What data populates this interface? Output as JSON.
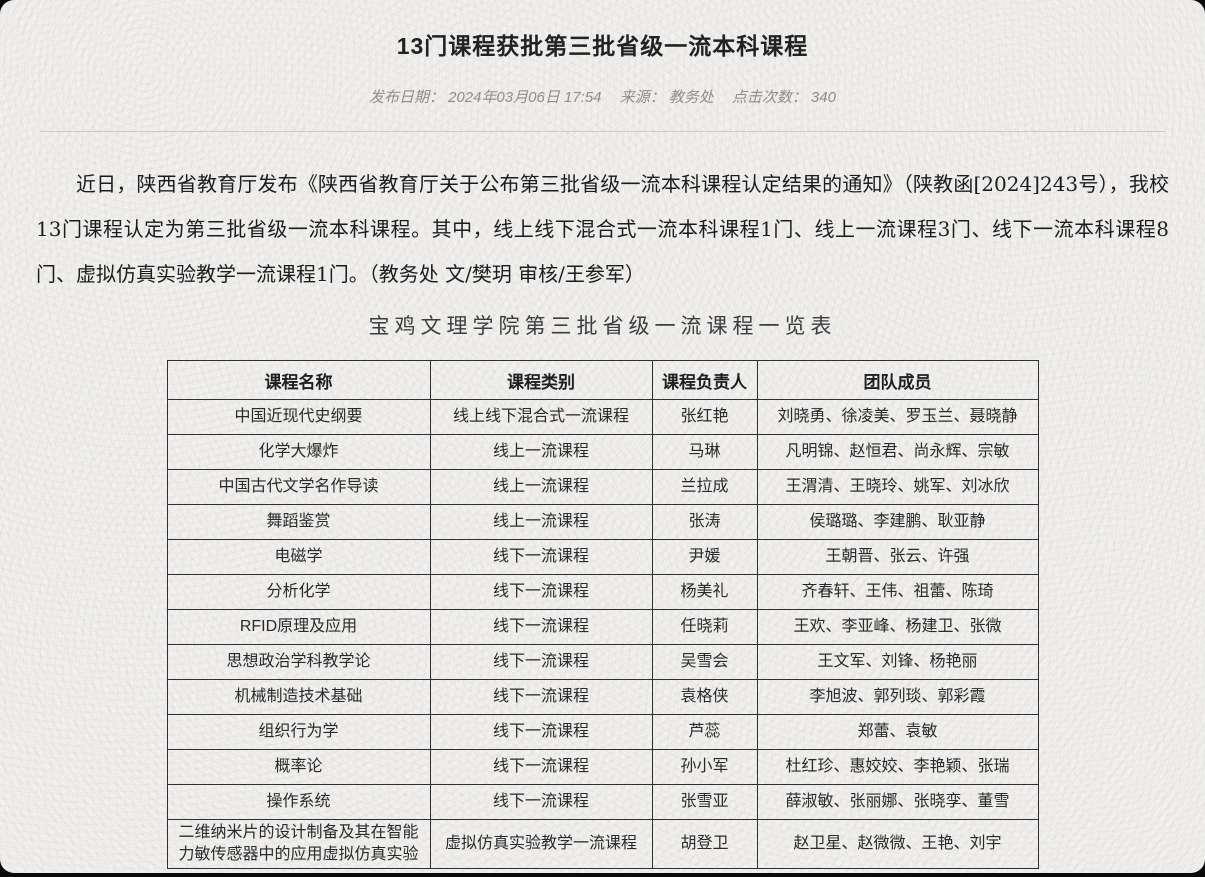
{
  "page": {
    "title": "13门课程获批第三批省级一流本科课程",
    "meta": {
      "date_label": "发布日期：",
      "date_value": "2024年03月06日 17:54",
      "source_label": "来源：",
      "source_value": "教务处",
      "clicks_label": "点击次数：",
      "clicks_value": "340"
    },
    "paragraph": "近日，陕西省教育厅发布《陕西省教育厅关于公布第三批省级一流本科课程认定结果的通知》（陕教函[2024]243号），我校13门课程认定为第三批省级一流本科课程。其中，线上线下混合式一流本科课程1门、线上一流课程3门、线下一流本科课程8门、虚拟仿真实验教学一流课程1门。（教务处 文/樊玥 审核/王参军）",
    "table_caption": "宝鸡文理学院第三批省级一流课程一览表",
    "table": {
      "headers": [
        "课程名称",
        "课程类别",
        "课程负责人",
        "团队成员"
      ],
      "rows": [
        [
          "中国近现代史纲要",
          "线上线下混合式一流课程",
          "张红艳",
          "刘晓勇、徐凌美、罗玉兰、聂晓静"
        ],
        [
          "化学大爆炸",
          "线上一流课程",
          "马琳",
          "凡明锦、赵恒君、尚永辉、宗敏"
        ],
        [
          "中国古代文学名作导读",
          "线上一流课程",
          "兰拉成",
          "王渭清、王晓玲、姚军、刘冰欣"
        ],
        [
          "舞蹈鉴赏",
          "线上一流课程",
          "张涛",
          "侯璐璐、李建鹏、耿亚静"
        ],
        [
          "电磁学",
          "线下一流课程",
          "尹媛",
          "王朝晋、张云、许强"
        ],
        [
          "分析化学",
          "线下一流课程",
          "杨美礼",
          "齐春轩、王伟、祖蕾、陈琦"
        ],
        [
          "RFID原理及应用",
          "线下一流课程",
          "任晓莉",
          "王欢、李亚峰、杨建卫、张微"
        ],
        [
          "思想政治学科教学论",
          "线下一流课程",
          "吴雪会",
          "王文军、刘锋、杨艳丽"
        ],
        [
          "机械制造技术基础",
          "线下一流课程",
          "袁格侠",
          "李旭波、郭列琰、郭彩霞"
        ],
        [
          "组织行为学",
          "线下一流课程",
          "芦蕊",
          "郑蕾、袁敏"
        ],
        [
          "概率论",
          "线下一流课程",
          "孙小军",
          "杜红珍、惠姣姣、李艳颖、张瑞"
        ],
        [
          "操作系统",
          "线下一流课程",
          "张雪亚",
          "薛淑敏、张丽娜、张晓孪、董雪"
        ],
        [
          "二维纳米片的设计制备及其在智能力敏传感器中的应用虚拟仿真实验",
          "虚拟仿真实验教学一流课程",
          "胡登卫",
          "赵卫星、赵微微、王艳、刘宇"
        ]
      ]
    },
    "colors": {
      "page_bg": "#f2f1ef",
      "table_border": "#2f2f2f",
      "meta_text": "#8f8d8b",
      "body_text": "#1c1c1c",
      "divider": "#cbc9c7"
    }
  }
}
